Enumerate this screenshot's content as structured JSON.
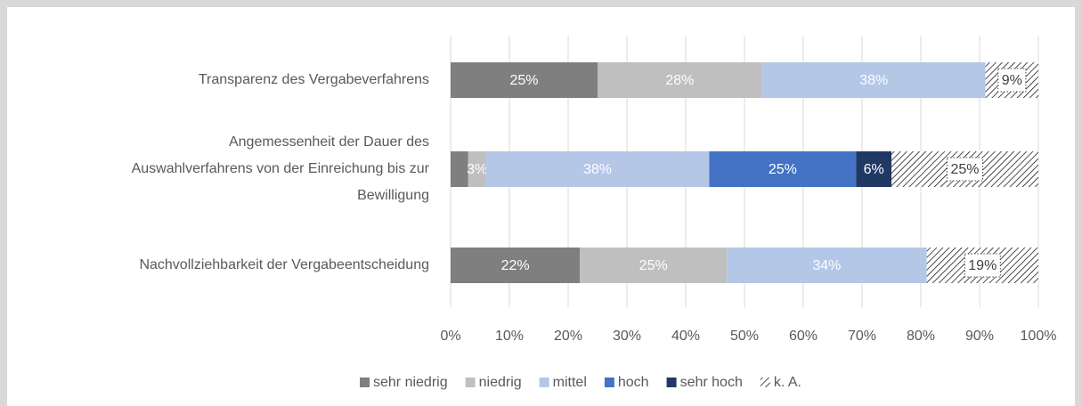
{
  "chart_data": {
    "type": "stacked_barh",
    "categories": [
      "Transparenz des Vergabeverfahrens",
      "Angemessenheit der Dauer des\nAuswahlverfahrens von der Einreichung bis zur\nBewilligung",
      "Nachvollziehbarkeit der Vergabeentscheidung"
    ],
    "series": [
      {
        "name": "sehr niedrig",
        "color": "#7f7f7f",
        "values": [
          25,
          3,
          22
        ],
        "value_labels": [
          "25%",
          null,
          "22%"
        ]
      },
      {
        "name": "niedrig",
        "color": "#bfbfbf",
        "values": [
          28,
          3,
          25
        ],
        "value_labels": [
          "28%",
          "3%",
          "25%"
        ]
      },
      {
        "name": "mittel",
        "color": "#b4c7e7",
        "values": [
          38,
          38,
          34
        ],
        "value_labels": [
          "38%",
          "38%",
          "34%"
        ]
      },
      {
        "name": "hoch",
        "color": "#4472c4",
        "values": [
          0,
          25,
          0
        ],
        "value_labels": [
          null,
          "25%",
          null
        ]
      },
      {
        "name": "sehr hoch",
        "color": "#203864",
        "values": [
          0,
          6,
          0
        ],
        "value_labels": [
          null,
          "6%",
          null
        ]
      },
      {
        "name": "k. A.",
        "color": "hatch",
        "values": [
          9,
          25,
          19
        ],
        "value_labels": [
          "9%",
          "25%",
          "19%"
        ]
      }
    ],
    "xlim": [
      0,
      100
    ],
    "xticks": [
      {
        "value": 0,
        "label": "0%"
      },
      {
        "value": 10,
        "label": "10%"
      },
      {
        "value": 20,
        "label": "20%"
      },
      {
        "value": 30,
        "label": "30%"
      },
      {
        "value": 40,
        "label": "40%"
      },
      {
        "value": 50,
        "label": "50%"
      },
      {
        "value": 60,
        "label": "60%"
      },
      {
        "value": 70,
        "label": "70%"
      },
      {
        "value": 80,
        "label": "80%"
      },
      {
        "value": 90,
        "label": "90%"
      },
      {
        "value": 100,
        "label": "100%"
      }
    ],
    "grid": true,
    "legend": "bottom"
  }
}
